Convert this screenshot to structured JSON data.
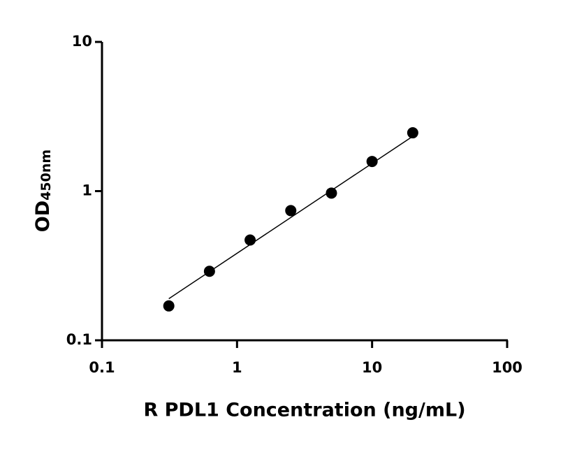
{
  "chart_data": {
    "type": "scatter",
    "x_label": "R PDL1 Concentration (ng/mL)",
    "y_label": "OD",
    "y_label_sub": "450nm",
    "xscale": "log",
    "yscale": "log",
    "xlim": [
      0.1,
      100
    ],
    "ylim": [
      0.1,
      10
    ],
    "xticks": [
      0.1,
      1,
      10,
      100
    ],
    "yticks": [
      0.1,
      1,
      10
    ],
    "series": [
      {
        "color": "#000000",
        "x": [
          0.3125,
          0.625,
          1.25,
          2.5,
          5,
          10,
          20
        ],
        "values": [
          0.17,
          0.29,
          0.47,
          0.74,
          0.97,
          1.58,
          2.46
        ]
      }
    ],
    "fit": {
      "color": "#000000",
      "x": [
        0.3125,
        20
      ],
      "values": [
        0.19,
        2.33
      ]
    }
  }
}
